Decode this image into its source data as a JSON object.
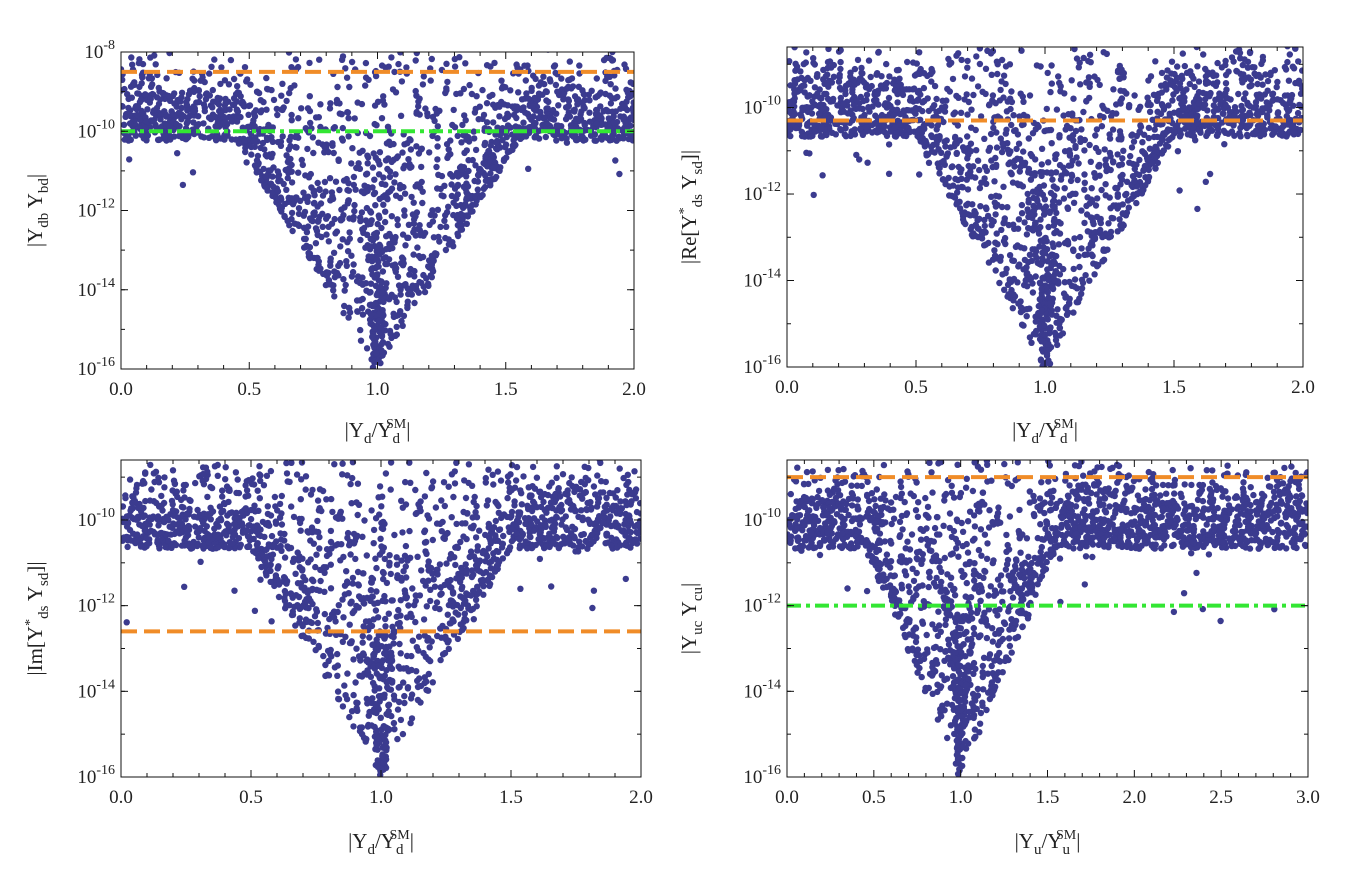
{
  "figure": {
    "description_none": ""
  },
  "colors": {
    "points": "#3b3b8f",
    "orange_line": "#f08c28",
    "green_line": "#33e633"
  },
  "chart_data": [
    {
      "type": "scatter",
      "panel": "top-left",
      "xlabel": {
        "pre": "|Y",
        "sub1": "d",
        "mid": "/Y",
        "sub2": "d",
        "sup2": "SM",
        "post": "|"
      },
      "ylabel": {
        "pre": "|Y",
        "sub1": "db",
        "mid": " Y",
        "sub2": "bd",
        "sup1": "",
        "post": "|"
      },
      "xlim": [
        0,
        2
      ],
      "ylim_log10": [
        -16,
        -8
      ],
      "x_ticks": [
        "0.0",
        "0.5",
        "1.0",
        "1.5",
        "2.0"
      ],
      "y_ticks": [
        {
          "exp": "-16",
          "base": "10"
        },
        {
          "exp": "-14",
          "base": "10"
        },
        {
          "exp": "-12",
          "base": "10"
        },
        {
          "exp": "-10",
          "base": "10"
        },
        {
          "exp": "-8",
          "base": "10"
        }
      ],
      "hlines": [
        {
          "name": "orange-dashed",
          "log10_value": -8.5,
          "style": "dashed",
          "color": "orange"
        },
        {
          "name": "green-dashdot",
          "log10_value": -10.0,
          "style": "dashdot",
          "color": "green"
        }
      ],
      "point_density": {
        "seed": 11,
        "background_count": 1600,
        "center_x": 1.0,
        "funnel_width": 0.55,
        "floor_log10": -16,
        "top_log10": -8,
        "outliers_high_x": 0.35
      }
    },
    {
      "type": "scatter",
      "panel": "top-right",
      "xlabel": {
        "pre": "|Y",
        "sub1": "d",
        "mid": "/Y",
        "sub2": "d",
        "sup2": "SM",
        "post": "|"
      },
      "ylabel": {
        "pre": "|Re[Y",
        "sup1": "*",
        "sub1": "ds",
        "mid": " Y",
        "sub2": "sd",
        "post": "]|"
      },
      "xlim": [
        0,
        2
      ],
      "ylim_log10": [
        -16,
        -8.6
      ],
      "x_ticks": [
        "0.0",
        "0.5",
        "1.0",
        "1.5",
        "2.0"
      ],
      "y_ticks": [
        {
          "exp": "-16",
          "base": "10"
        },
        {
          "exp": "-14",
          "base": "10"
        },
        {
          "exp": "-12",
          "base": "10"
        },
        {
          "exp": "-10",
          "base": "10"
        }
      ],
      "hlines": [
        {
          "name": "orange-dashed",
          "log10_value": -10.3,
          "style": "dashed",
          "color": "orange"
        }
      ],
      "point_density": {
        "seed": 23,
        "background_count": 1700,
        "center_x": 1.0,
        "funnel_width": 0.5,
        "floor_log10": -16,
        "top_log10": -8.6,
        "outliers_high_x": 0.4
      }
    },
    {
      "type": "scatter",
      "panel": "bottom-left",
      "xlabel": {
        "pre": "|Y",
        "sub1": "d",
        "mid": "/Y",
        "sub2": "d",
        "sup2": "SM",
        "post": "|"
      },
      "ylabel": {
        "pre": "|Im[Y",
        "sup1": "*",
        "sub1": "ds",
        "mid": " Y",
        "sub2": "sd",
        "post": "]|"
      },
      "xlim": [
        0,
        2
      ],
      "ylim_log10": [
        -16,
        -8.6
      ],
      "x_ticks": [
        "0.0",
        "0.5",
        "1.0",
        "1.5",
        "2.0"
      ],
      "y_ticks": [
        {
          "exp": "-16",
          "base": "10"
        },
        {
          "exp": "-14",
          "base": "10"
        },
        {
          "exp": "-12",
          "base": "10"
        },
        {
          "exp": "-10",
          "base": "10"
        }
      ],
      "hlines": [
        {
          "name": "orange-dashed",
          "log10_value": -12.6,
          "style": "dashed",
          "color": "orange"
        }
      ],
      "point_density": {
        "seed": 37,
        "background_count": 1500,
        "center_x": 1.0,
        "funnel_width": 0.5,
        "floor_log10": -16,
        "top_log10": -8.6,
        "outliers_high_x": 0.45
      }
    },
    {
      "type": "scatter",
      "panel": "bottom-right",
      "xlabel": {
        "pre": "|Y",
        "sub1": "u",
        "mid": "/Y",
        "sub2": "u",
        "sup2": "SM",
        "post": "|"
      },
      "ylabel": {
        "pre": "|Y",
        "sub1": "uc",
        "mid": " Y",
        "sub2": "cu",
        "sup1": "",
        "post": "|"
      },
      "xlim": [
        0,
        3
      ],
      "ylim_log10": [
        -16,
        -8.6
      ],
      "x_ticks": [
        "0.0",
        "0.5",
        "1.0",
        "1.5",
        "2.0",
        "2.5",
        "3.0"
      ],
      "y_ticks": [
        {
          "exp": "-16",
          "base": "10"
        },
        {
          "exp": "-14",
          "base": "10"
        },
        {
          "exp": "-12",
          "base": "10"
        },
        {
          "exp": "-10",
          "base": "10"
        }
      ],
      "hlines": [
        {
          "name": "orange-dashed",
          "log10_value": -9.0,
          "style": "dashed",
          "color": "orange"
        },
        {
          "name": "green-dashdot",
          "log10_value": -12.0,
          "style": "dashdot",
          "color": "green"
        }
      ],
      "point_density": {
        "seed": 53,
        "background_count": 1700,
        "center_x": 1.0,
        "funnel_width": 0.55,
        "floor_log10": -16,
        "top_log10": -8.6,
        "outliers_high_x": 0.55
      }
    }
  ]
}
